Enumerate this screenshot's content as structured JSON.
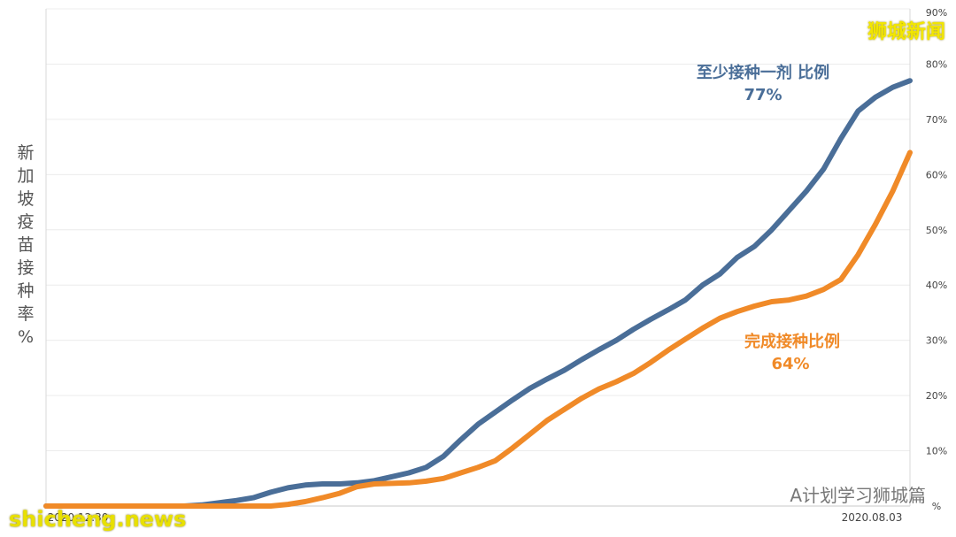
{
  "watermarks": {
    "top_right": "狮城新闻",
    "bottom_left": "shicheng.news",
    "wechat_tag": "A计划学习狮城篇"
  },
  "y_title_chars": [
    "新",
    "加",
    "坡",
    "疫",
    "苗",
    "接",
    "种",
    "率",
    "%"
  ],
  "annotations": {
    "first_dose": {
      "label": "至少接种一剂 比例",
      "value": "77%"
    },
    "full_dose": {
      "label": "完成接种比例",
      "value": "64%"
    }
  },
  "chart_data": {
    "type": "line",
    "title": "",
    "xlabel": "",
    "ylabel": "新加坡疫苗接种率%",
    "x_ticks": [
      "2020.12.30",
      "2020.08.03"
    ],
    "ylim": [
      0,
      90
    ],
    "y_ticks": [
      "%",
      "10%",
      "20%",
      "30%",
      "40%",
      "50%",
      "60%",
      "70%",
      "80%",
      "90%"
    ],
    "y_axis_side": "right",
    "grid": true,
    "colors": {
      "first_dose": "#4a6e98",
      "full_dose": "#f08a28"
    },
    "x": [
      0,
      2,
      4,
      6,
      8,
      10,
      12,
      14,
      16,
      18,
      20,
      22,
      24,
      26,
      28,
      30,
      32,
      34,
      36,
      38,
      40,
      42,
      44,
      46,
      48,
      50,
      52,
      54,
      56,
      58,
      60,
      62,
      64,
      66,
      68,
      70,
      72,
      74,
      76,
      78,
      80,
      82,
      84,
      86,
      88,
      90,
      92,
      94,
      96,
      98,
      100
    ],
    "series": [
      {
        "name": "至少接种一剂 比例",
        "values": [
          0,
          0,
          0,
          0,
          0,
          0,
          0,
          0,
          0,
          0.2,
          0.6,
          1.0,
          1.5,
          2.5,
          3.3,
          3.8,
          4.0,
          4.0,
          4.2,
          4.6,
          5.3,
          6.0,
          7.0,
          9.0,
          12.0,
          14.8,
          17.0,
          19.2,
          21.3,
          23.0,
          24.6,
          26.5,
          28.3,
          30.0,
          32.0,
          33.8,
          35.5,
          37.3,
          40.0,
          42.0,
          45.0,
          47.0,
          50.0,
          53.5,
          57.0,
          61.0,
          66.5,
          71.5,
          74.0,
          75.8,
          77.0
        ]
      },
      {
        "name": "完成接种比例",
        "values": [
          0,
          0,
          0,
          0,
          0,
          0,
          0,
          0,
          0,
          0,
          0,
          0,
          0,
          0,
          0.3,
          0.8,
          1.5,
          2.3,
          3.5,
          4.0,
          4.1,
          4.2,
          4.5,
          5.0,
          6.0,
          7.0,
          8.2,
          10.5,
          13.0,
          15.5,
          17.5,
          19.5,
          21.2,
          22.5,
          24.0,
          26.0,
          28.2,
          30.2,
          32.2,
          34.0,
          35.2,
          36.2,
          37.0,
          37.3,
          38.0,
          39.2,
          41.0,
          45.5,
          51.0,
          57.0,
          64.0
        ]
      }
    ]
  }
}
